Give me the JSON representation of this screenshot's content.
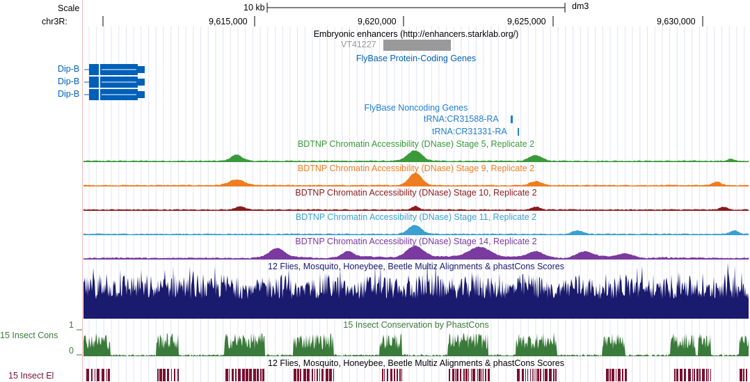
{
  "browser": {
    "assembly": "dm3",
    "scale_label": "Scale",
    "scale_value": "10 kb",
    "chrom_label": "chr3R:",
    "ticks": [
      "9,615,000",
      "9,620,000",
      "9,625,000",
      "9,630,000"
    ]
  },
  "tracks": {
    "enhancers": {
      "title": "Embryonic enhancers (http://enhancers.starklab.org/)",
      "item": "VT41227",
      "color": "#999999"
    },
    "flybase_coding": {
      "title": "FlyBase Protein-Coding Genes",
      "color": "#0060b8",
      "genes": [
        "Dip-B",
        "Dip-B",
        "Dip-B"
      ]
    },
    "flybase_noncoding": {
      "title": "FlyBase Noncoding Genes",
      "color": "#1f7fd0",
      "genes": [
        "tRNA:CR31588-RA",
        "tRNA:CR31331-RA"
      ]
    },
    "dnase": [
      {
        "title": "BDTNP Chromatin Accessibility (DNase) Stage 5, Replicate 2",
        "color": "#3a9a3a"
      },
      {
        "title": "BDTNP Chromatin Accessibility (DNase) Stage 9, Replicate 2",
        "color": "#ee7d20"
      },
      {
        "title": "BDTNP Chromatin Accessibility (DNase) Stage 10, Replicate 2",
        "color": "#8b1a1a"
      },
      {
        "title": "BDTNP Chromatin Accessibility (DNase) Stage 11, Replicate 2",
        "color": "#3aa0cf"
      },
      {
        "title": "BDTNP Chromatin Accessibility (DNase) Stage 14, Replicate 2",
        "color": "#7a3aa0"
      }
    ],
    "multiz": {
      "title": "12 Flies, Mosquito, Honeybee, Beetle Multiz Alignments & phastCons Scores",
      "color": "#1a1a6e"
    },
    "phastcons": {
      "title": "15 Insect Conservation by PhastCons",
      "side_label": "15 Insect Cons",
      "axis_max": "1",
      "axis_min": "0",
      "color": "#3a7a3a"
    },
    "elements": {
      "title": "12 Flies, Mosquito, Honeybee, Beetle Multiz Alignments & phastCons Scores",
      "side_label": "15 Insect El",
      "color": "#7a1030"
    }
  }
}
